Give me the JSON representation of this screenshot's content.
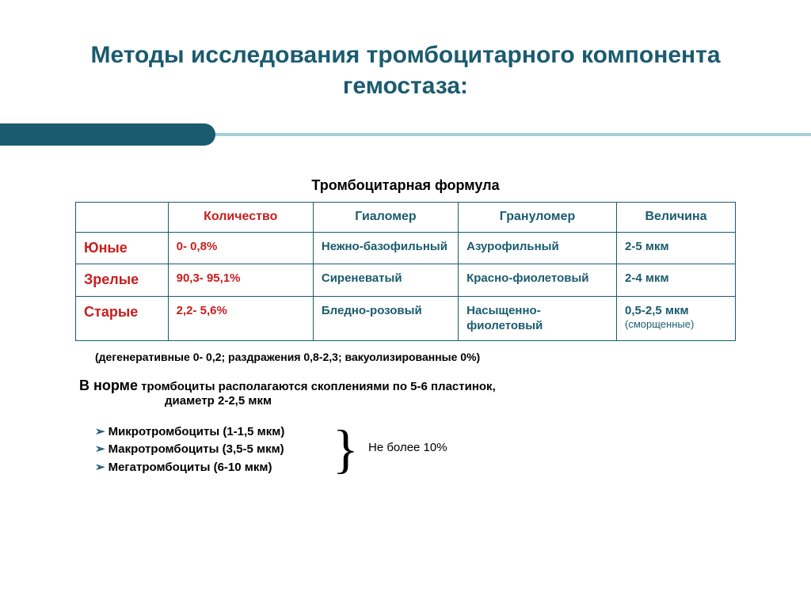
{
  "slide": {
    "title": "Методы исследования тромбоцитарного компонента гемостаза:",
    "subtitle": "Тромбоцитарная формула",
    "accent_color": "#1a5b6f",
    "highlight_color": "#c81e1e",
    "decor_light": "#a8cfd8",
    "background": "#ffffff"
  },
  "table": {
    "headers": {
      "blank": "",
      "count": "Количество",
      "hyalomer": "Гиаломер",
      "granulomer": "Грануломер",
      "size": "Величина"
    },
    "rows": [
      {
        "label": "Юные",
        "count": "0- 0,8%",
        "hyalomer": "Нежно-базофильный",
        "granulomer": "Азурофильный",
        "size": "2-5 мкм",
        "size_note": ""
      },
      {
        "label": "Зрелые",
        "count": "90,3- 95,1%",
        "hyalomer": "Сиреневатый",
        "granulomer": "Красно-фиолетовый",
        "size": "2-4 мкм",
        "size_note": ""
      },
      {
        "label": "Старые",
        "count": "2,2- 5,6%",
        "hyalomer": "Бледно-розовый",
        "granulomer": "Насыщенно-фиолетовый",
        "size": "0,5-2,5 мкм",
        "size_note": "(сморщенные)"
      }
    ]
  },
  "footnote": "(дегенеративные 0- 0,2; раздражения 0,8-2,3; вакуолизированные 0%)",
  "norm": {
    "prefix": "В норме",
    "line1": " тромбоциты располагаются скоплениями по 5-6 пластинок,",
    "line2": "диаметр 2-2,5 мкм"
  },
  "list": {
    "items": [
      "Микротромбоциты (1-1,5 мкм)",
      "Макротромбоциты  (3,5-5 мкм)",
      "Мегатромбоциты     (6-10 мкм)"
    ],
    "brace_label": "Не более 10%"
  }
}
